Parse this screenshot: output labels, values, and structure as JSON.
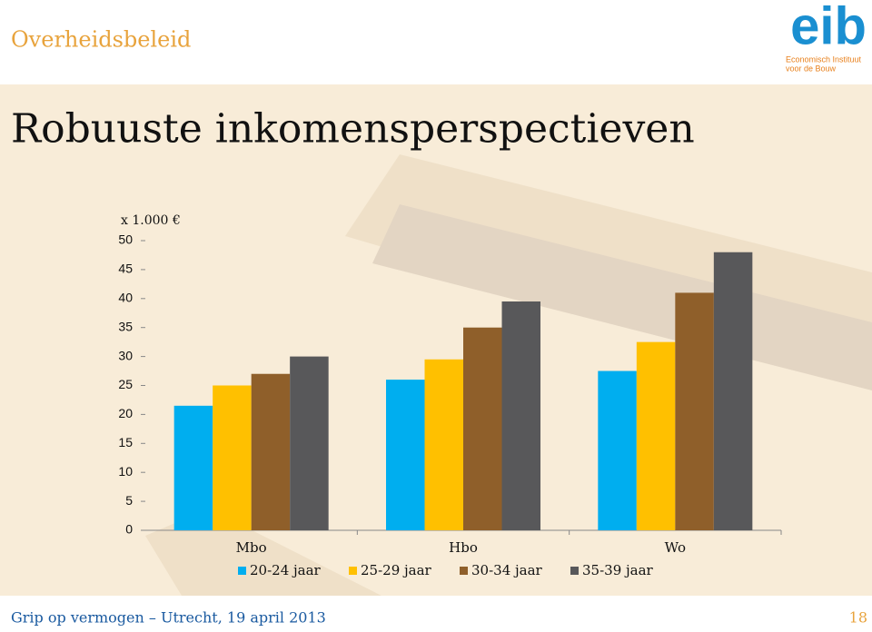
{
  "header": {
    "section": "Overheidsbeleid",
    "logo": "eib",
    "logo_sub": [
      "Economisch Instituut",
      "voor de Bouw"
    ]
  },
  "chart_data": {
    "type": "bar",
    "title": "Robuuste inkomensperspectieven",
    "unit_label": "x 1.000 €",
    "categories": [
      "Mbo",
      "Hbo",
      "Wo"
    ],
    "series": [
      {
        "name": "20-24 jaar",
        "color": "#00aeef",
        "values": [
          21.5,
          26,
          27.5
        ]
      },
      {
        "name": "25-29 jaar",
        "color": "#ffc000",
        "values": [
          25,
          29.5,
          32.5
        ]
      },
      {
        "name": "30-34 jaar",
        "color": "#8f5f2a",
        "values": [
          27,
          35,
          41
        ]
      },
      {
        "name": "35-39 jaar",
        "color": "#58585a",
        "values": [
          30,
          39.5,
          48
        ]
      }
    ],
    "ylim": [
      0,
      50
    ],
    "yticks": [
      0,
      5,
      10,
      15,
      20,
      25,
      30,
      35,
      40,
      45,
      50
    ],
    "grid": false,
    "legend": "bottom"
  },
  "footer": {
    "text": "Grip op vermogen – Utrecht, 19 april 2013",
    "page": "18"
  }
}
